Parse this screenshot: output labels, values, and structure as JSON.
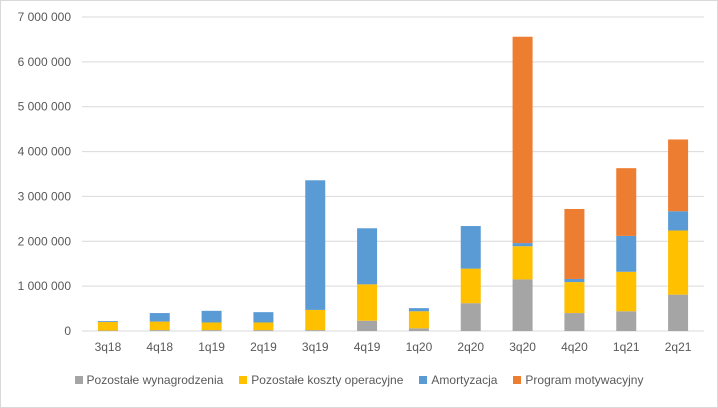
{
  "chart_data": {
    "type": "bar",
    "stacked": true,
    "categories": [
      "3q18",
      "4q18",
      "1q19",
      "2q19",
      "3q19",
      "4q19",
      "1q20",
      "2q20",
      "3q20",
      "4q20",
      "1q21",
      "2q21"
    ],
    "series": [
      {
        "name": "Pozostałe wynagrodzenia",
        "color": "#a5a5a5",
        "values": [
          10000,
          20000,
          20000,
          20000,
          20000,
          230000,
          60000,
          620000,
          1150000,
          400000,
          440000,
          810000
        ]
      },
      {
        "name": "Pozostałe koszty operacyjne",
        "color": "#ffc000",
        "values": [
          190000,
          190000,
          170000,
          170000,
          450000,
          810000,
          380000,
          770000,
          740000,
          690000,
          880000,
          1430000
        ]
      },
      {
        "name": "Amortyzacja",
        "color": "#5b9bd5",
        "values": [
          20000,
          190000,
          260000,
          230000,
          2890000,
          1250000,
          70000,
          950000,
          70000,
          70000,
          800000,
          430000
        ]
      },
      {
        "name": "Program motywacyjny",
        "color": "#ed7d31",
        "values": [
          0,
          0,
          0,
          0,
          0,
          0,
          0,
          0,
          4600000,
          1560000,
          1510000,
          1600000
        ]
      }
    ],
    "y_ticks": [
      "0",
      "1 000 000",
      "2 000 000",
      "3 000 000",
      "4 000 000",
      "5 000 000",
      "6 000 000",
      "7 000 000"
    ],
    "ylim": [
      0,
      7000000
    ],
    "grid": true,
    "legend_position": "bottom"
  }
}
